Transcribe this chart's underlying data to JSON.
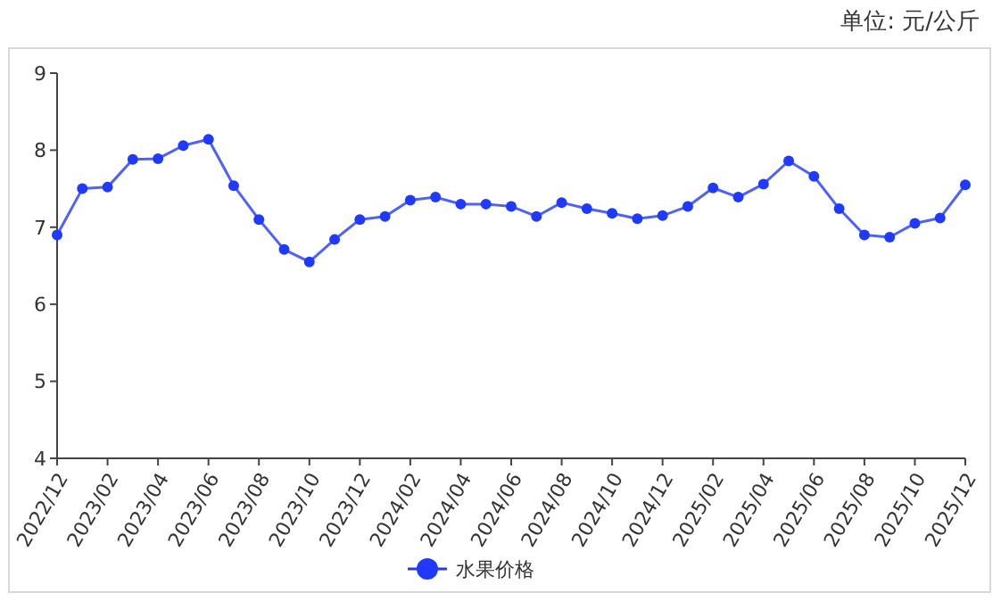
{
  "chart_data": {
    "type": "line",
    "annotations": [
      "单位: 元/公斤"
    ],
    "categories": [
      "2022/12",
      null,
      "2023/02",
      null,
      "2023/04",
      null,
      "2023/06",
      null,
      "2023/08",
      null,
      "2023/10",
      null,
      "2023/12",
      null,
      "2024/02",
      null,
      "2024/04",
      null,
      "2024/06",
      null,
      "2024/08",
      null,
      "2024/10",
      null,
      "2024/12",
      null,
      "2025/02",
      null,
      "2025/04",
      null,
      "2025/06",
      null,
      "2025/08",
      null,
      "2025/10",
      null,
      "2025/12"
    ],
    "series": [
      {
        "name": "水果价格",
        "color": "#2039ff",
        "values": [
          6.9,
          7.5,
          7.52,
          7.88,
          7.89,
          8.06,
          8.14,
          7.54,
          7.1,
          6.71,
          6.55,
          6.84,
          7.1,
          7.14,
          7.35,
          7.39,
          7.3,
          7.3,
          7.27,
          7.14,
          7.32,
          7.24,
          7.18,
          7.11,
          7.15,
          7.27,
          7.51,
          7.39,
          7.56,
          7.86,
          7.66,
          7.24,
          6.9,
          6.87,
          7.05,
          7.12,
          7.55
        ]
      }
    ],
    "ylim": [
      4,
      9
    ],
    "yticks": [
      4,
      5,
      6,
      7,
      8,
      9
    ],
    "grid": false,
    "legend": "bottom",
    "marker": "circle",
    "line_style": "solid"
  }
}
